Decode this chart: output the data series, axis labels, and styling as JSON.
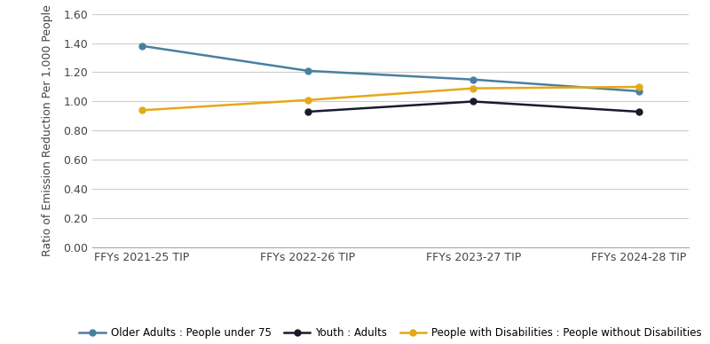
{
  "x_labels": [
    "FFYs 2021-25 TIP",
    "FFYs 2022-26 TIP",
    "FFYs 2023-27 TIP",
    "FFYs 2024-28 TIP"
  ],
  "series": [
    {
      "label": "Older Adults : People under 75",
      "values": [
        1.38,
        1.21,
        1.15,
        1.07
      ],
      "color": "#4a7fa0",
      "marker": "o",
      "linewidth": 1.8
    },
    {
      "label": "Youth : Adults",
      "values": [
        null,
        0.93,
        1.0,
        0.93
      ],
      "color": "#1a1a2e",
      "marker": "o",
      "linewidth": 1.8
    },
    {
      "label": "People with Disabilities : People without Disabilities",
      "values": [
        0.94,
        1.01,
        1.09,
        1.1
      ],
      "color": "#e6a817",
      "marker": "o",
      "linewidth": 1.8
    }
  ],
  "ylabel": "Ratio of Emission Reduction Per 1,000 People",
  "ylim": [
    0.0,
    1.6
  ],
  "yticks": [
    0.0,
    0.2,
    0.4,
    0.6,
    0.8,
    1.0,
    1.2,
    1.4,
    1.6
  ],
  "ytick_labels": [
    "0.00",
    "0.20",
    "0.40",
    "0.60",
    "0.80",
    "1.00",
    "1.20",
    "1.40",
    "1.60"
  ],
  "grid_color": "#cccccc",
  "background_color": "#ffffff",
  "fig_width": 8.0,
  "fig_height": 3.88,
  "dpi": 100
}
